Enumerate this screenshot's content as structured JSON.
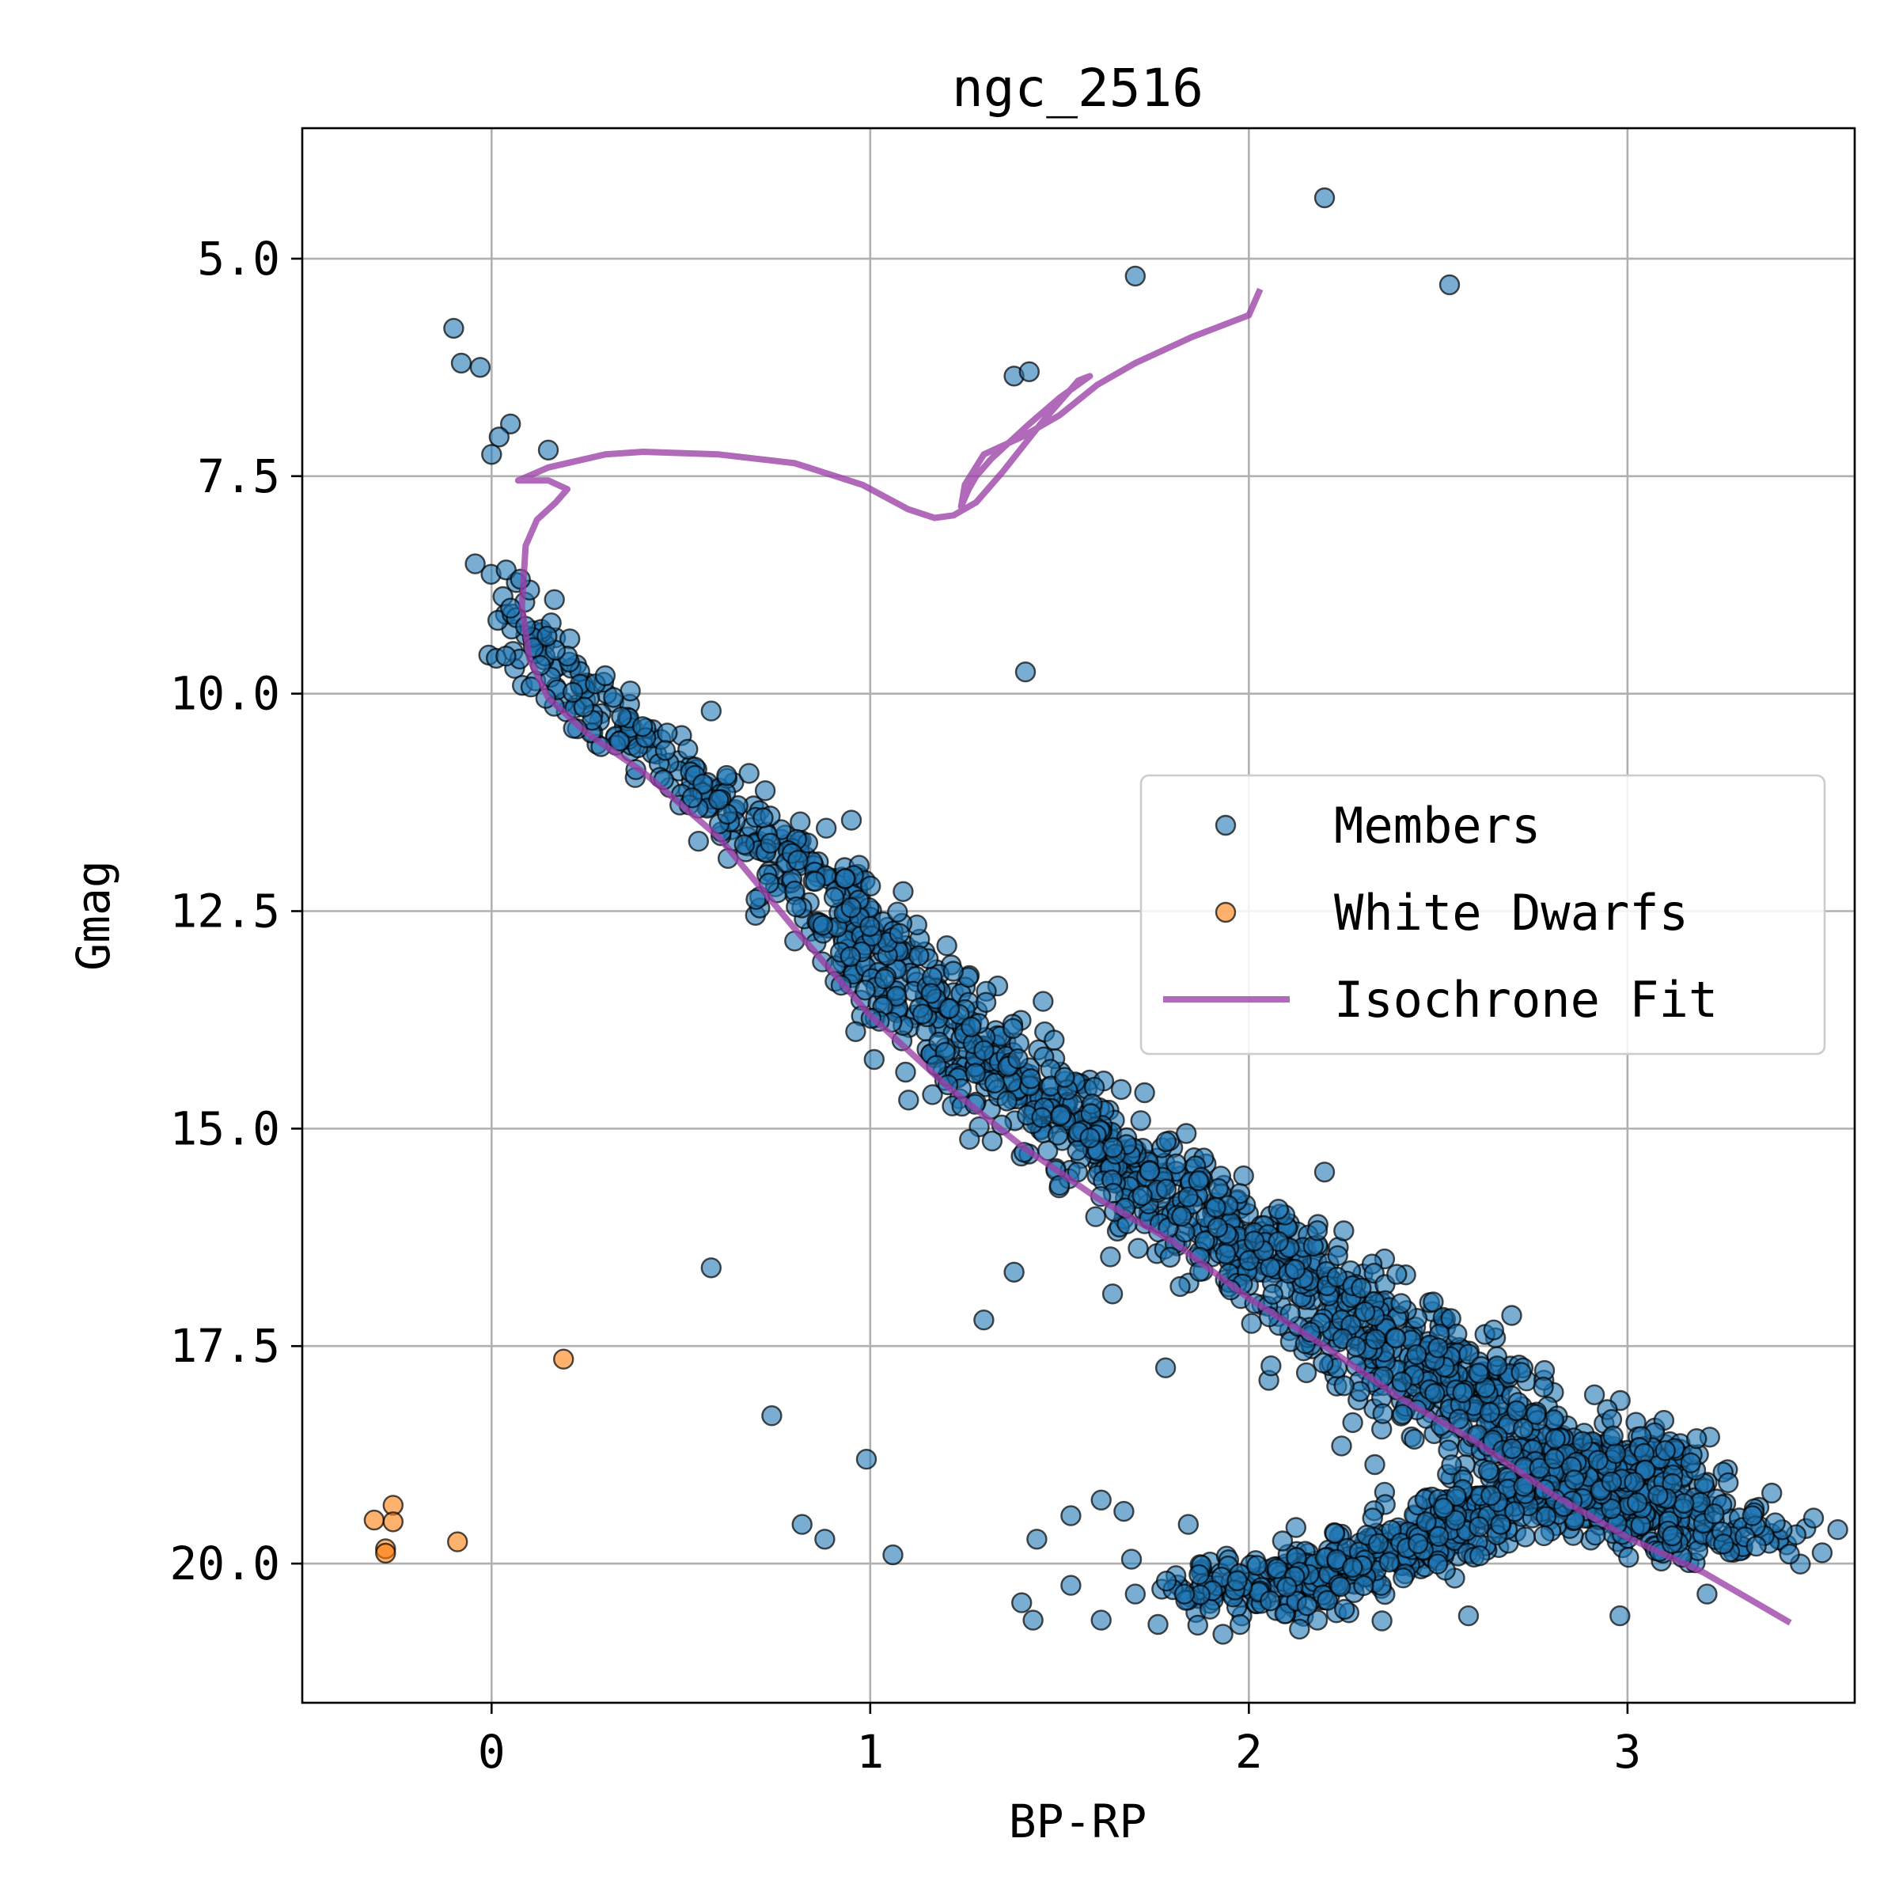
{
  "chart_data": {
    "type": "scatter",
    "title": "ngc_2516",
    "xlabel": "BP-RP",
    "ylabel": "Gmag",
    "xlim": [
      -0.5,
      3.6
    ],
    "ylim": [
      21.6,
      3.5
    ],
    "y_inverted": true,
    "grid": true,
    "legend_position": "center-right",
    "xticks": [
      0,
      1,
      2,
      3
    ],
    "xtick_labels": [
      "0",
      "1",
      "2",
      "3"
    ],
    "yticks": [
      5.0,
      7.5,
      10.0,
      12.5,
      15.0,
      17.5,
      20.0
    ],
    "ytick_labels": [
      "5.0",
      "7.5",
      "10.0",
      "12.5",
      "15.0",
      "17.5",
      "20.0"
    ],
    "series": [
      {
        "name": "Members",
        "kind": "scatter",
        "color": "#1f77b4",
        "outlier_points": [
          [
            2.2,
            4.3
          ],
          [
            1.7,
            5.2
          ],
          [
            2.53,
            5.3
          ],
          [
            -0.1,
            5.8
          ],
          [
            -0.08,
            6.2
          ],
          [
            -0.03,
            6.25
          ],
          [
            1.38,
            6.35
          ],
          [
            1.42,
            6.3
          ],
          [
            0.05,
            6.9
          ],
          [
            0.15,
            7.2
          ],
          [
            0.02,
            7.05
          ],
          [
            0.0,
            7.25
          ],
          [
            1.41,
            9.75
          ],
          [
            0.58,
            10.2
          ],
          [
            0.58,
            16.6
          ],
          [
            1.3,
            17.2
          ],
          [
            1.38,
            16.65
          ],
          [
            1.64,
            16.9
          ],
          [
            1.78,
            17.75
          ],
          [
            0.74,
            18.3
          ],
          [
            0.99,
            18.8
          ],
          [
            0.82,
            19.55
          ],
          [
            0.88,
            19.72
          ],
          [
            1.06,
            19.9
          ],
          [
            1.44,
            19.72
          ],
          [
            1.53,
            19.45
          ],
          [
            1.61,
            19.27
          ],
          [
            1.67,
            19.4
          ],
          [
            1.69,
            19.95
          ],
          [
            1.84,
            19.55
          ],
          [
            1.4,
            20.45
          ],
          [
            1.43,
            20.65
          ],
          [
            1.53,
            20.25
          ],
          [
            1.61,
            20.65
          ],
          [
            1.7,
            20.35
          ],
          [
            1.76,
            20.7
          ],
          [
            1.83,
            20.35
          ],
          [
            2.2,
            15.5
          ],
          [
            2.58,
            20.6
          ],
          [
            2.98,
            20.6
          ],
          [
            3.21,
            20.35
          ],
          [
            3.34,
            19.8
          ],
          [
            3.33,
            19.45
          ]
        ],
        "main_sequence_ridge": [
          [
            -0.02,
            8.2
          ],
          [
            0.05,
            9.0
          ],
          [
            0.1,
            9.5
          ],
          [
            0.2,
            10.0
          ],
          [
            0.35,
            10.5
          ],
          [
            0.5,
            10.9
          ],
          [
            0.65,
            11.4
          ],
          [
            0.8,
            12.0
          ],
          [
            0.95,
            12.7
          ],
          [
            1.1,
            13.4
          ],
          [
            1.3,
            14.2
          ],
          [
            1.5,
            14.9
          ],
          [
            1.7,
            15.5
          ],
          [
            1.9,
            16.1
          ],
          [
            2.1,
            16.7
          ],
          [
            2.3,
            17.3
          ],
          [
            2.5,
            17.9
          ],
          [
            2.7,
            18.5
          ],
          [
            2.9,
            19.0
          ],
          [
            3.1,
            19.5
          ],
          [
            3.25,
            19.9
          ]
        ],
        "faint_branch_ridge": [
          [
            1.9,
            20.4
          ],
          [
            2.1,
            20.25
          ],
          [
            2.3,
            20.0
          ],
          [
            2.45,
            19.75
          ],
          [
            2.6,
            19.4
          ],
          [
            2.75,
            19.15
          ],
          [
            2.9,
            18.95
          ],
          [
            3.05,
            18.75
          ]
        ],
        "approx_point_count": 2400
      },
      {
        "name": "White Dwarfs",
        "kind": "scatter",
        "color": "#ff7f0e",
        "x": [
          0.19,
          -0.31,
          -0.26,
          -0.26,
          -0.28,
          -0.28,
          -0.09
        ],
        "y": [
          17.65,
          19.5,
          19.33,
          19.52,
          19.83,
          19.88,
          19.75
        ]
      },
      {
        "name": "Isochrone Fit",
        "kind": "line",
        "color": "#9b3fa6",
        "x": [
          3.43,
          3.2,
          3.0,
          2.8,
          2.6,
          2.4,
          2.2,
          2.0,
          1.8,
          1.6,
          1.4,
          1.2,
          1.0,
          0.8,
          0.6,
          0.4,
          0.25,
          0.15,
          0.1,
          0.08,
          0.09,
          0.12,
          0.17,
          0.2,
          0.15,
          0.07,
          0.15,
          0.3,
          0.4,
          0.6,
          0.8,
          0.98,
          1.1,
          1.17,
          1.22,
          1.28,
          1.35,
          1.45,
          1.55,
          1.58,
          1.5,
          1.42,
          1.32,
          1.28,
          1.26,
          1.24,
          1.25,
          1.3,
          1.4,
          1.5,
          1.6,
          1.7,
          1.85,
          2.0,
          2.03
        ],
        "y": [
          20.68,
          20.1,
          19.7,
          19.2,
          18.6,
          18.1,
          17.5,
          16.95,
          16.3,
          15.8,
          15.2,
          14.5,
          13.7,
          12.7,
          11.65,
          10.9,
          10.45,
          10.05,
          9.6,
          9.0,
          8.3,
          8.0,
          7.8,
          7.65,
          7.55,
          7.55,
          7.4,
          7.25,
          7.22,
          7.25,
          7.35,
          7.6,
          7.88,
          7.98,
          7.95,
          7.8,
          7.45,
          6.9,
          6.4,
          6.35,
          6.6,
          6.9,
          7.3,
          7.5,
          7.65,
          7.85,
          7.6,
          7.25,
          7.05,
          6.8,
          6.45,
          6.2,
          5.9,
          5.65,
          5.35
        ]
      }
    ]
  }
}
